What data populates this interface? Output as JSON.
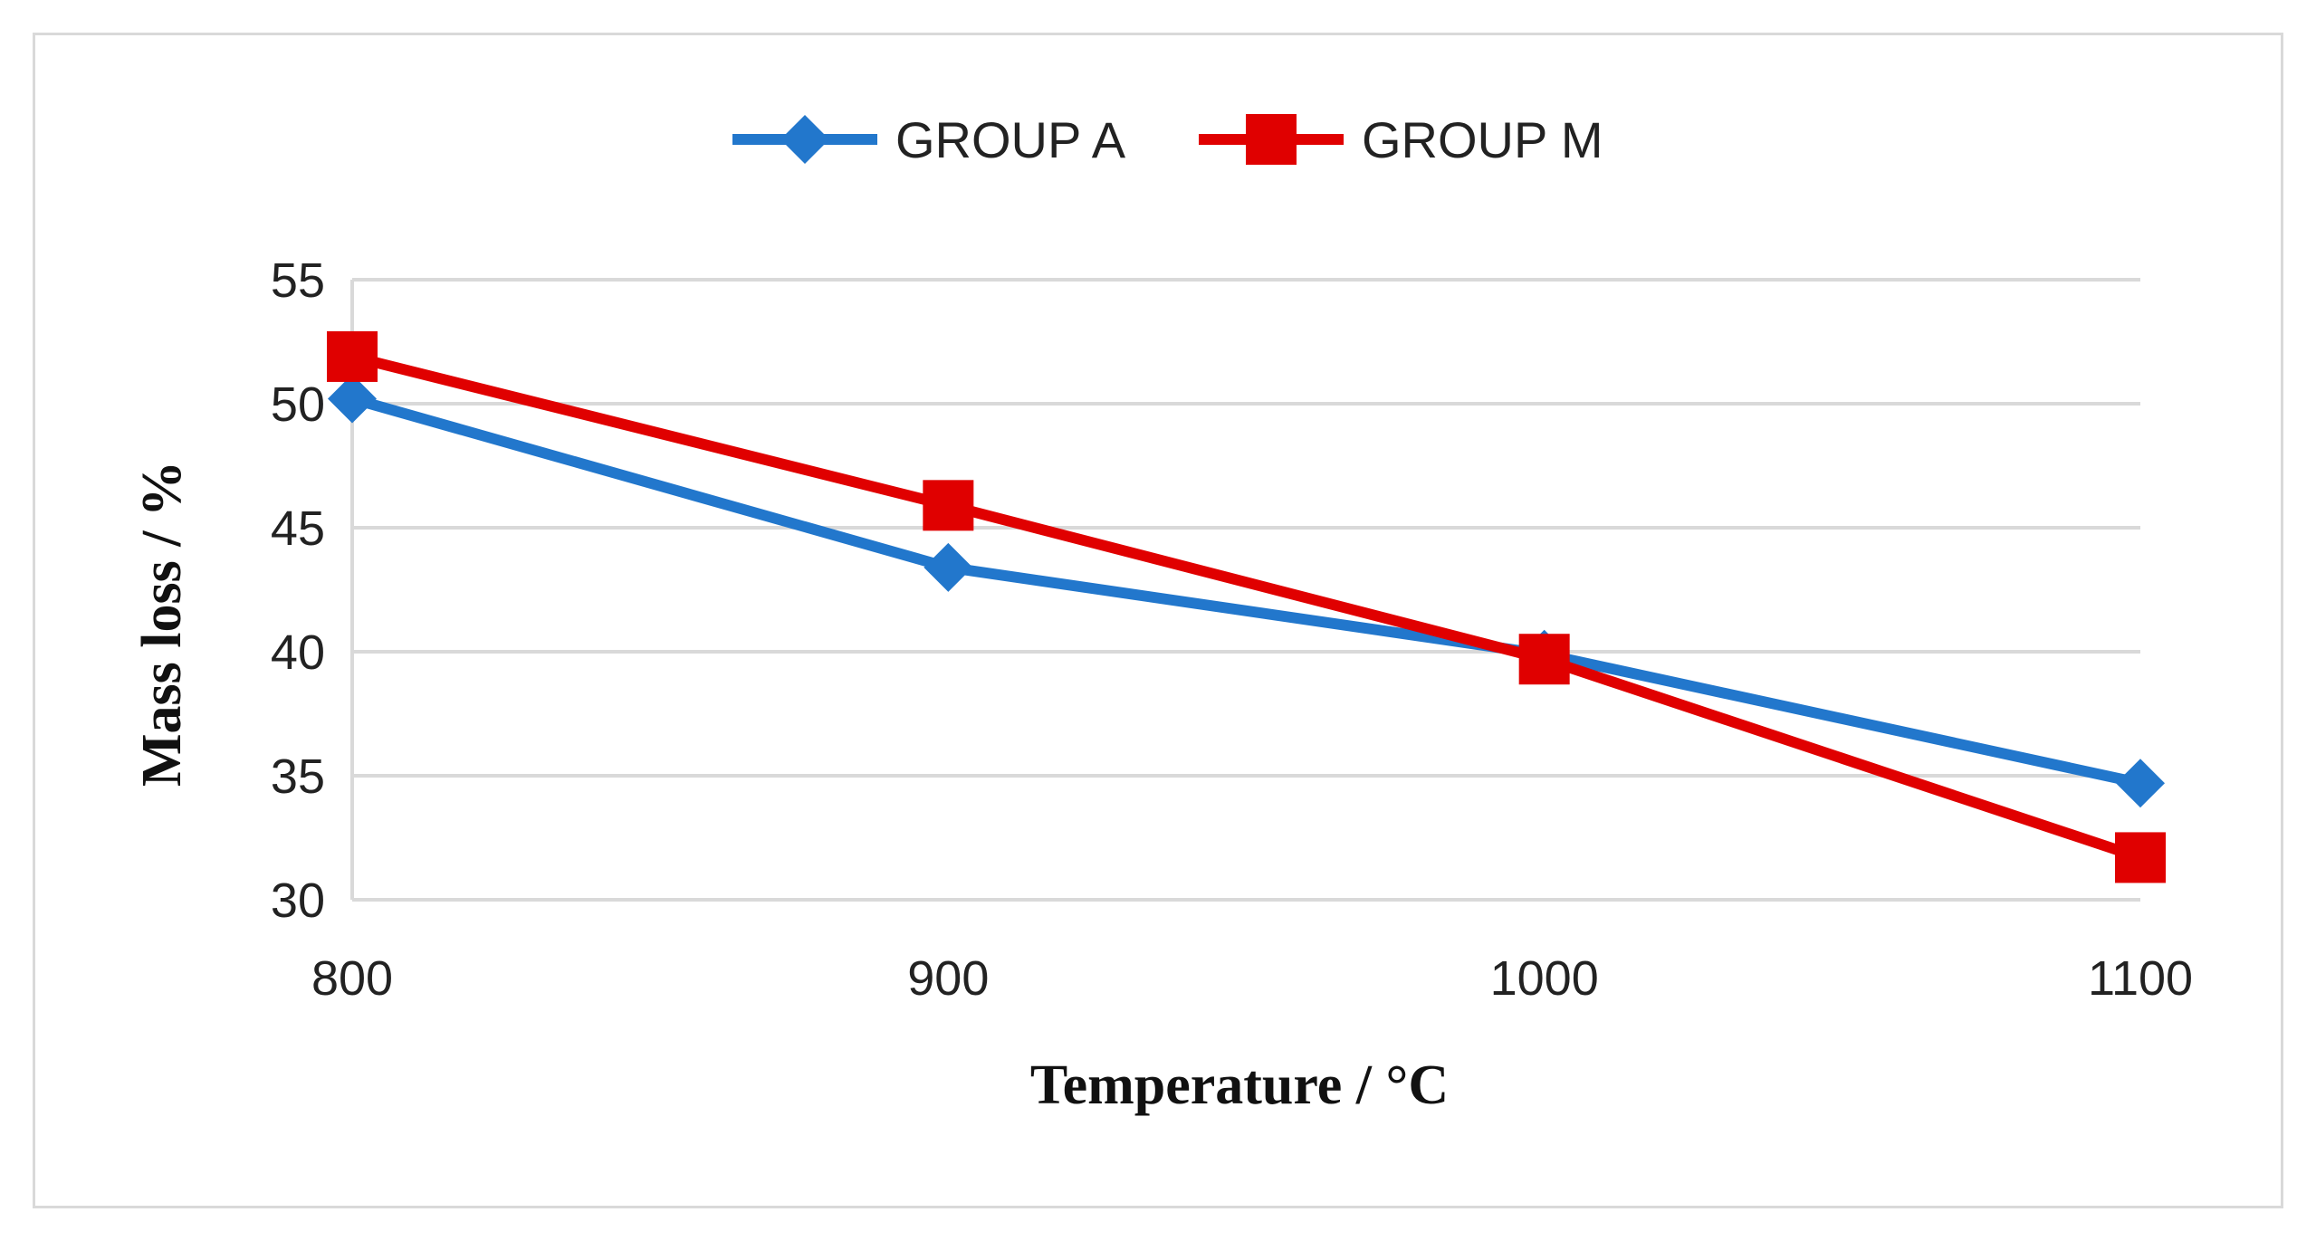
{
  "chart_data": {
    "type": "line",
    "title": "",
    "xlabel": "Temperature / °C",
    "ylabel": "Mass loss / %",
    "categories": [
      "800",
      "900",
      "1000",
      "1100"
    ],
    "x": [
      800,
      900,
      1000,
      1100
    ],
    "xlim": [
      800,
      1100
    ],
    "ylim": [
      30,
      55
    ],
    "yticks": [
      "30",
      "35",
      "40",
      "45",
      "50",
      "55"
    ],
    "grid": true,
    "legend_position": "top-center",
    "series": [
      {
        "name": "GROUP A",
        "color": "#2277cc",
        "marker": "diamond",
        "values": [
          50.2,
          43.4,
          39.9,
          34.7
        ]
      },
      {
        "name": "GROUP M",
        "color": "#e00000",
        "marker": "square",
        "values": [
          51.9,
          45.9,
          39.7,
          31.7
        ]
      }
    ]
  }
}
